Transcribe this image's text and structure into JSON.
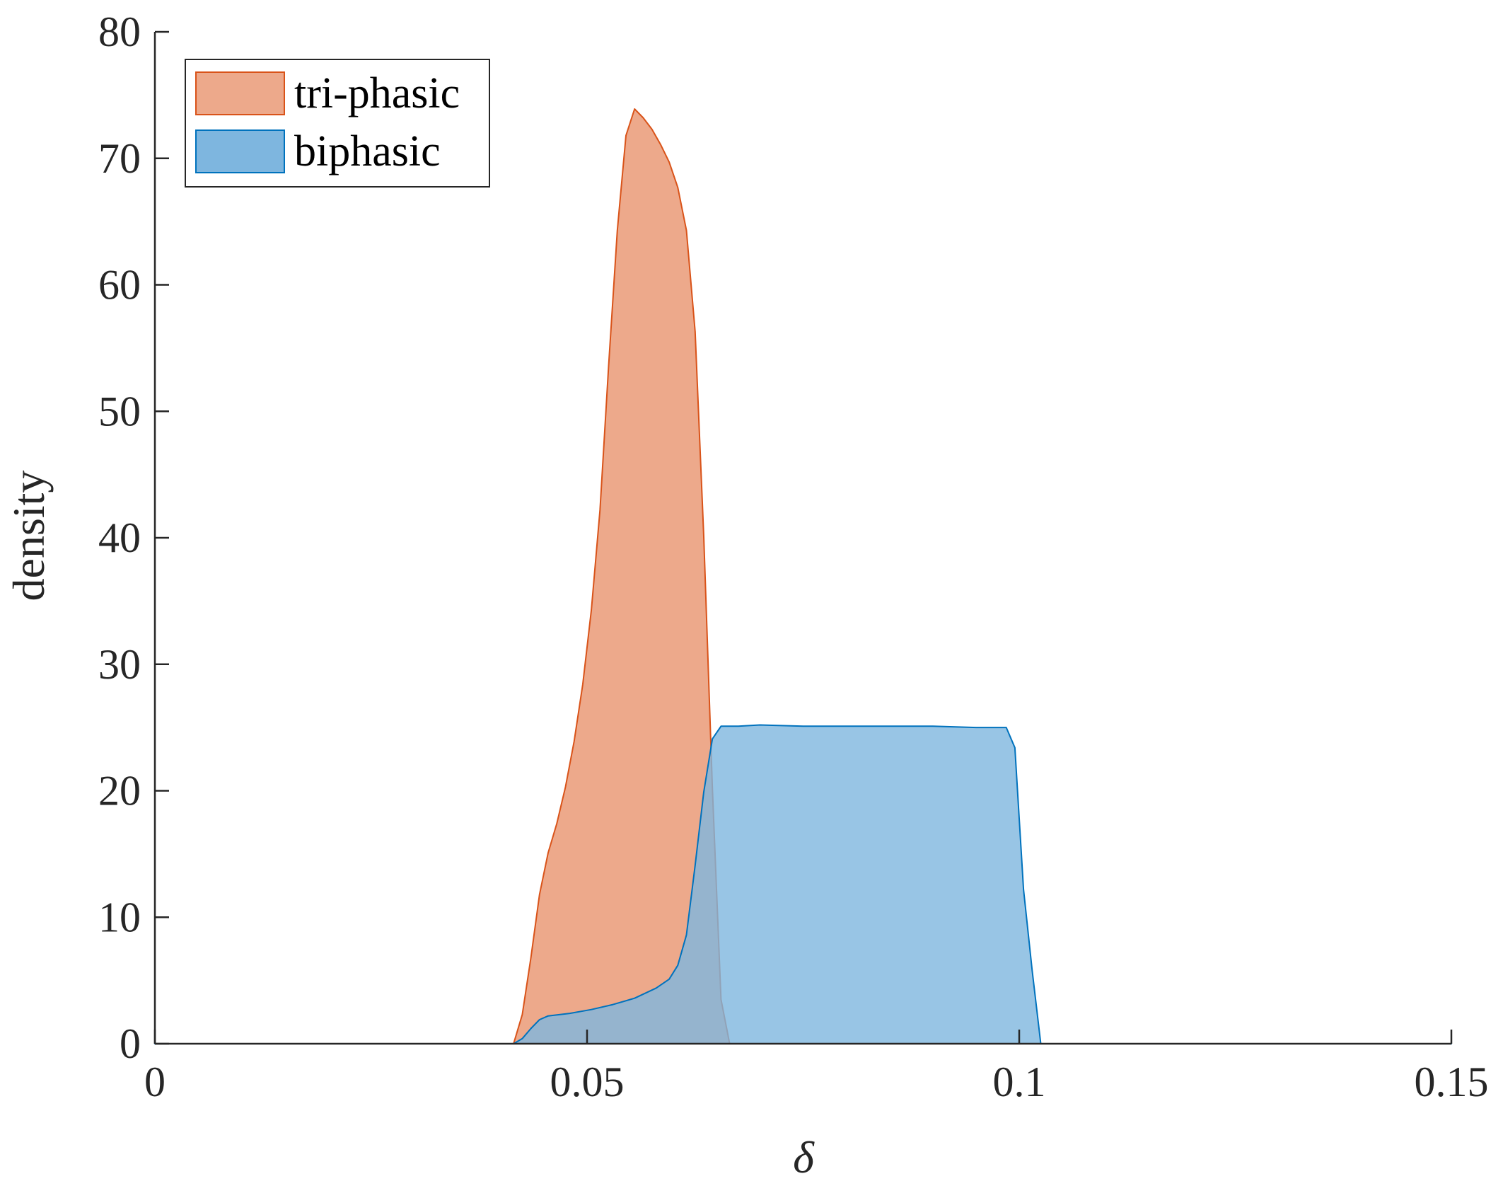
{
  "chart_data": {
    "type": "area",
    "xlabel": "δ",
    "ylabel": "density",
    "xlim": [
      0,
      0.15
    ],
    "ylim": [
      0,
      80
    ],
    "xticks": [
      0,
      0.05,
      0.1,
      0.15
    ],
    "xtick_labels": [
      "0",
      "0.05",
      "0.1",
      "0.15"
    ],
    "yticks": [
      0,
      10,
      20,
      30,
      40,
      50,
      60,
      70,
      80
    ],
    "ytick_labels": [
      "0",
      "10",
      "20",
      "30",
      "40",
      "50",
      "60",
      "70",
      "80"
    ],
    "grid": false,
    "legend_position": "top-left",
    "series": [
      {
        "name": "tri-phasic",
        "fill": "#EDA98B",
        "stroke": "#D95319",
        "x": [
          0,
          0.0415,
          0.0425,
          0.0435,
          0.0445,
          0.0455,
          0.0465,
          0.0475,
          0.0485,
          0.0495,
          0.0505,
          0.0515,
          0.0525,
          0.0535,
          0.0545,
          0.0555,
          0.0565,
          0.0575,
          0.0585,
          0.0595,
          0.0605,
          0.0615,
          0.0625,
          0.0635,
          0.0645,
          0.0655,
          0.0665,
          0.15
        ],
        "y": [
          0,
          0,
          2.3,
          6.8,
          11.8,
          15.1,
          17.4,
          20.3,
          23.9,
          28.4,
          34.3,
          42.2,
          53.6,
          64.3,
          71.8,
          73.9,
          73.2,
          72.3,
          71.1,
          69.7,
          67.7,
          64.3,
          56.3,
          40.1,
          20.2,
          3.5,
          0,
          0
        ]
      },
      {
        "name": "biphasic",
        "fill": "#7EB6DF",
        "stroke": "#0072BD",
        "x": [
          0,
          0.0415,
          0.0425,
          0.0435,
          0.0445,
          0.0455,
          0.048,
          0.0505,
          0.053,
          0.0555,
          0.058,
          0.0595,
          0.0605,
          0.0615,
          0.0625,
          0.0635,
          0.0645,
          0.0655,
          0.0665,
          0.0675,
          0.07,
          0.075,
          0.08,
          0.085,
          0.09,
          0.095,
          0.0985,
          0.0995,
          0.1005,
          0.1015,
          0.1025,
          0.15
        ],
        "y": [
          0,
          0,
          0.4,
          1.2,
          1.9,
          2.2,
          2.4,
          2.7,
          3.1,
          3.6,
          4.4,
          5.1,
          6.2,
          8.6,
          14.1,
          19.9,
          24.1,
          25.1,
          25.1,
          25.1,
          25.2,
          25.1,
          25.1,
          25.1,
          25.1,
          25.0,
          25.0,
          23.4,
          12.2,
          5.8,
          0,
          0
        ]
      }
    ]
  }
}
